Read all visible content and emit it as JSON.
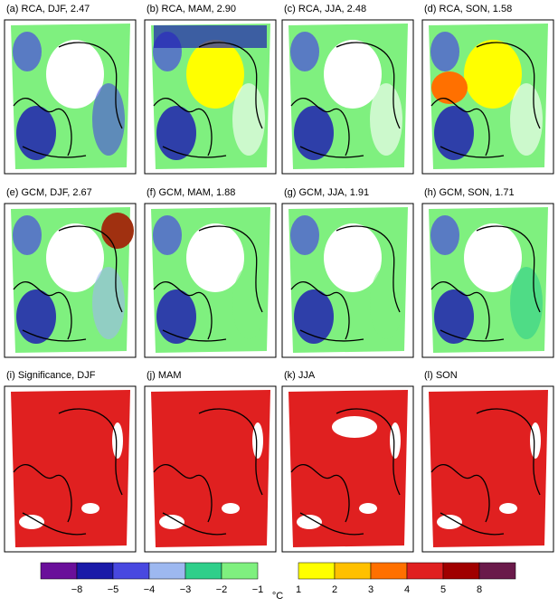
{
  "panels": [
    {
      "title": "(a)  RCA, DJF, 2.47"
    },
    {
      "title": "(b)  RCA, MAM, 2.90"
    },
    {
      "title": "(c)  RCA, JJA, 2.48"
    },
    {
      "title": "(d)  RCA, SON, 1.58"
    },
    {
      "title": "(e)  GCM, DJF, 2.67"
    },
    {
      "title": "(f)  GCM, MAM, 1.88"
    },
    {
      "title": "(g)  GCM, JJA, 1.91"
    },
    {
      "title": "(h)  GCM, SON, 1.71"
    },
    {
      "title": "(i)  Significance, DJF"
    },
    {
      "title": "(j)  MAM"
    },
    {
      "title": "(k)  JJA"
    },
    {
      "title": "(l)  SON"
    }
  ],
  "colorbar": {
    "unit": "°C",
    "negative": {
      "colors": [
        "#6a0f9a",
        "#1a1aa8",
        "#4848e0",
        "#9db8f0",
        "#2fcf8a",
        "#7ff07f"
      ],
      "labels": [
        "−8",
        "−5",
        "−4",
        "−3",
        "−2",
        "−1"
      ]
    },
    "positive": {
      "colors": [
        "#ffff00",
        "#ffc000",
        "#ff7000",
        "#e02020",
        "#a00000",
        "#6a1a4a"
      ],
      "labels": [
        "1",
        "2",
        "3",
        "4",
        "5",
        "8"
      ]
    }
  }
}
